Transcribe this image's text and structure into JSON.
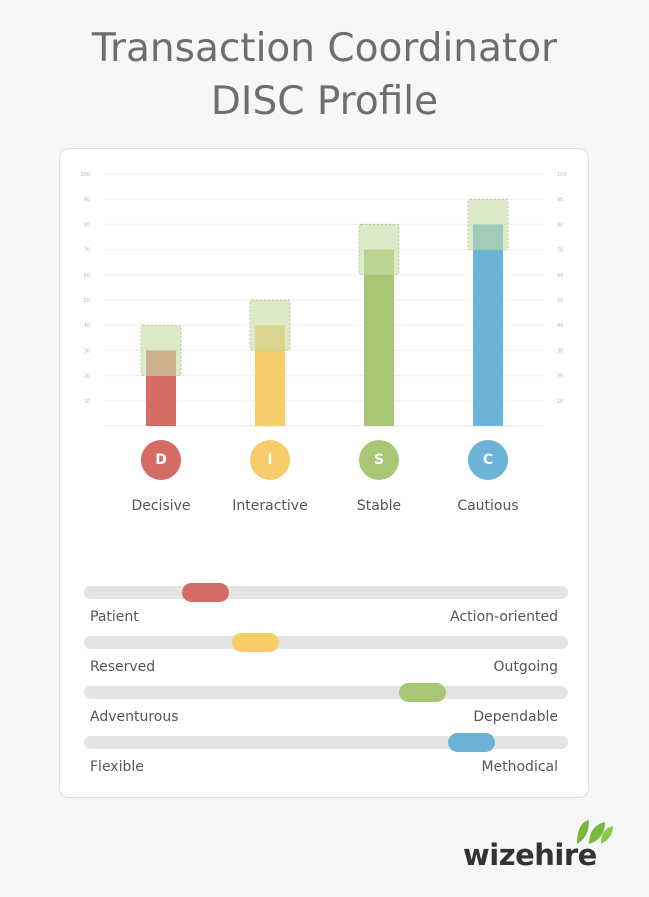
{
  "title_line1": "Transaction Coordinator",
  "title_line2": "DISC Profile",
  "chart_data": {
    "type": "bar",
    "categories": [
      "D",
      "I",
      "S",
      "C"
    ],
    "category_names": [
      "Decisive",
      "Interactive",
      "Stable",
      "Cautious"
    ],
    "values": [
      30,
      40,
      70,
      80
    ],
    "ideal_ranges": [
      [
        20,
        40
      ],
      [
        30,
        50
      ],
      [
        60,
        80
      ],
      [
        70,
        90
      ]
    ],
    "colors": [
      "#d56b63",
      "#f7cd6a",
      "#a7c775",
      "#6bb4d8"
    ],
    "range_color": "#c7dca7",
    "ylim": [
      0,
      100
    ],
    "yticks": [
      10,
      20,
      30,
      40,
      50,
      60,
      70,
      80,
      90,
      100
    ],
    "grid": true,
    "title": "",
    "xlabel": "",
    "ylabel": ""
  },
  "sliders": [
    {
      "left": "Patient",
      "right": "Action-oriented",
      "value": 0.25,
      "color": "#d56b63"
    },
    {
      "left": "Reserved",
      "right": "Outgoing",
      "value": 0.355,
      "color": "#f7cd6a"
    },
    {
      "left": "Adventurous",
      "right": "Dependable",
      "value": 0.7,
      "color": "#a7c775"
    },
    {
      "left": "Flexible",
      "right": "Methodical",
      "value": 0.8,
      "color": "#6bb4d8"
    }
  ],
  "logo": {
    "text": "wizehire",
    "color": "#78b83d"
  }
}
